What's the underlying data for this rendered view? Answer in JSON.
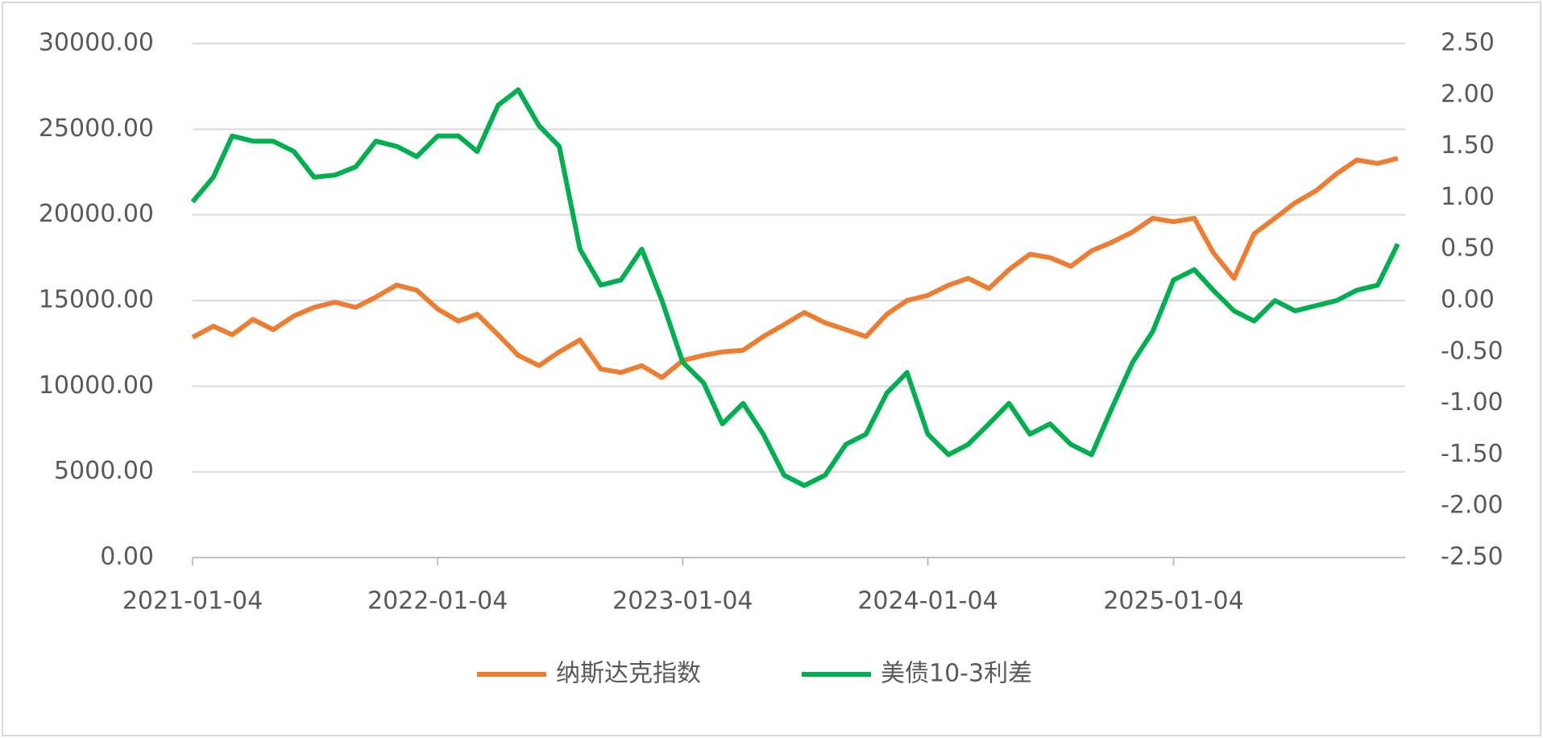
{
  "chart_data": {
    "type": "line",
    "x": [
      "2021-01-04",
      "2021-02-04",
      "2021-03-04",
      "2021-04-04",
      "2021-05-04",
      "2021-06-04",
      "2021-07-04",
      "2021-08-04",
      "2021-09-04",
      "2021-10-04",
      "2021-11-04",
      "2021-12-04",
      "2022-01-04",
      "2022-02-04",
      "2022-03-04",
      "2022-04-04",
      "2022-05-04",
      "2022-06-04",
      "2022-07-04",
      "2022-08-04",
      "2022-09-04",
      "2022-10-04",
      "2022-11-04",
      "2022-12-04",
      "2023-01-04",
      "2023-02-04",
      "2023-03-04",
      "2023-04-04",
      "2023-05-04",
      "2023-06-04",
      "2023-07-04",
      "2023-08-04",
      "2023-09-04",
      "2023-10-04",
      "2023-11-04",
      "2023-12-04",
      "2024-01-04",
      "2024-02-04",
      "2024-03-04",
      "2024-04-04",
      "2024-05-04",
      "2024-06-04",
      "2024-07-04",
      "2024-08-04",
      "2024-09-04",
      "2024-10-04",
      "2024-11-04",
      "2024-12-04",
      "2025-01-04",
      "2025-02-04",
      "2025-03-04",
      "2025-04-04",
      "2025-05-04",
      "2025-06-04",
      "2025-07-04",
      "2025-08-04",
      "2025-09-04",
      "2025-10-04",
      "2025-11-04",
      "2025-12-04"
    ],
    "series": [
      {
        "name": "纳斯达克指数",
        "color": "#ED7D31",
        "axis": "y",
        "values": [
          12850,
          13500,
          13000,
          13900,
          13300,
          14100,
          14600,
          14900,
          14600,
          15200,
          15900,
          15600,
          14500,
          13800,
          14200,
          13000,
          11800,
          11200,
          12000,
          12700,
          11000,
          10800,
          11200,
          10500,
          11500,
          11800,
          12000,
          12100,
          12900,
          13600,
          14300,
          13700,
          13300,
          12900,
          14200,
          15000,
          15300,
          15900,
          16300,
          15700,
          16800,
          17700,
          17500,
          17000,
          17900,
          18400,
          19000,
          19800,
          19600,
          19800,
          17800,
          16300,
          18900,
          19800,
          20700,
          21400,
          22400,
          23200,
          23000,
          23300
        ]
      },
      {
        "name": "美债10-3利差",
        "color": "#00B050",
        "axis": "y2",
        "values": [
          0.96,
          1.2,
          1.6,
          1.55,
          1.55,
          1.45,
          1.2,
          1.22,
          1.3,
          1.55,
          1.5,
          1.4,
          1.6,
          1.6,
          1.45,
          1.9,
          2.05,
          1.7,
          1.5,
          0.5,
          0.15,
          0.2,
          0.5,
          0.0,
          -0.6,
          -0.8,
          -1.2,
          -1.0,
          -1.3,
          -1.7,
          -1.8,
          -1.7,
          -1.4,
          -1.3,
          -0.9,
          -0.7,
          -1.3,
          -1.5,
          -1.4,
          -1.2,
          -1.0,
          -1.3,
          -1.2,
          -1.4,
          -1.5,
          -1.05,
          -0.6,
          -0.3,
          0.2,
          0.3,
          0.1,
          -0.1,
          -0.2,
          0.0,
          -0.1,
          -0.05,
          0.0,
          0.1,
          0.15,
          0.55
        ]
      }
    ],
    "xlim": [
      "2021-01-04",
      "2025-12-15"
    ],
    "xticks": [
      "2021-01-04",
      "2022-01-04",
      "2023-01-04",
      "2024-01-04",
      "2025-01-04"
    ],
    "ylim": [
      0,
      30000
    ],
    "yticks": [
      {
        "value": 0,
        "label": "0.00"
      },
      {
        "value": 5000,
        "label": "5000.00"
      },
      {
        "value": 10000,
        "label": "10000.00"
      },
      {
        "value": 15000,
        "label": "15000.00"
      },
      {
        "value": 20000,
        "label": "20000.00"
      },
      {
        "value": 25000,
        "label": "25000.00"
      },
      {
        "value": 30000,
        "label": "30000.00"
      }
    ],
    "y2lim": [
      -2.5,
      2.5
    ],
    "y2ticks": [
      {
        "value": -2.5,
        "label": "-2.50"
      },
      {
        "value": -2,
        "label": "-2.00"
      },
      {
        "value": -1.5,
        "label": "-1.50"
      },
      {
        "value": -1,
        "label": "-1.00"
      },
      {
        "value": -0.5,
        "label": "-0.50"
      },
      {
        "value": 0,
        "label": "0.00"
      },
      {
        "value": 0.5,
        "label": "0.50"
      },
      {
        "value": 1,
        "label": "1.00"
      },
      {
        "value": 1.5,
        "label": "1.50"
      },
      {
        "value": 2,
        "label": "2.00"
      },
      {
        "value": 2.5,
        "label": "2.50"
      }
    ],
    "grid": true,
    "legend": "bottom"
  }
}
